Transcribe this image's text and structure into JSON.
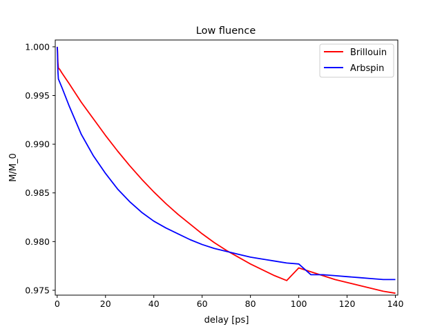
{
  "chart_data": {
    "type": "line",
    "title": "Low fluence",
    "xlabel": "delay [ps]",
    "ylabel": "M/M_0",
    "xlim": [
      -0.8,
      141
    ],
    "ylim": [
      0.9745,
      1.0007
    ],
    "xticks": [
      0,
      20,
      40,
      60,
      80,
      100,
      120,
      140
    ],
    "yticks": [
      0.975,
      0.98,
      0.985,
      0.99,
      0.995,
      1.0
    ],
    "xtick_labels": [
      "0",
      "20",
      "40",
      "60",
      "80",
      "100",
      "120",
      "140"
    ],
    "ytick_labels": [
      "0.975",
      "0.980",
      "0.985",
      "0.990",
      "0.995",
      "1.000"
    ],
    "grid": false,
    "legend_position": "top-right",
    "series": [
      {
        "name": "Brillouin",
        "color": "#ff0000",
        "x": [
          0,
          0.1,
          0.3,
          0.5,
          1,
          2,
          5,
          10,
          15,
          20,
          25,
          30,
          35,
          40,
          45,
          50,
          55,
          60,
          65,
          70,
          75,
          80,
          85,
          90,
          95,
          100,
          105,
          110,
          115,
          120,
          125,
          130,
          135,
          140
        ],
        "values": [
          1.0,
          0.9998,
          0.9984,
          0.9978,
          0.9977,
          0.9973,
          0.9962,
          0.9943,
          0.9926,
          0.9909,
          0.9893,
          0.9878,
          0.9864,
          0.9851,
          0.9839,
          0.9828,
          0.9818,
          0.9808,
          0.9799,
          0.9791,
          0.9784,
          0.9777,
          0.9771,
          0.9765,
          0.976,
          0.9773,
          0.9769,
          0.9765,
          0.9761,
          0.9758,
          0.9755,
          0.9752,
          0.9749,
          0.9747
        ]
      },
      {
        "name": "Arbspin",
        "color": "#0000ff",
        "x": [
          0,
          0.1,
          0.3,
          0.5,
          1,
          2,
          5,
          10,
          15,
          20,
          25,
          30,
          35,
          40,
          45,
          50,
          55,
          60,
          65,
          70,
          75,
          80,
          85,
          90,
          95,
          100,
          105,
          110,
          115,
          120,
          125,
          130,
          135,
          140
        ],
        "values": [
          1.0,
          0.9996,
          0.9975,
          0.9967,
          0.9964,
          0.9958,
          0.9939,
          0.991,
          0.9888,
          0.987,
          0.9854,
          0.9841,
          0.983,
          0.9821,
          0.9814,
          0.9808,
          0.9802,
          0.9797,
          0.9793,
          0.979,
          0.9787,
          0.9784,
          0.9782,
          0.978,
          0.9778,
          0.9777,
          0.9766,
          0.9766,
          0.9765,
          0.9764,
          0.9763,
          0.9762,
          0.9761,
          0.9761
        ]
      }
    ]
  }
}
